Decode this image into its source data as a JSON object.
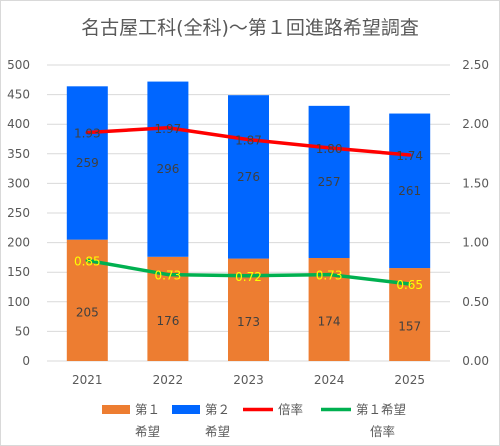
{
  "chart_data": {
    "type": "bar",
    "title": "名古屋工科(全科)～第１回進路希望調査",
    "categories": [
      "2021",
      "2022",
      "2023",
      "2024",
      "2025"
    ],
    "series": [
      {
        "name": "第１希望",
        "kind": "bar",
        "stack": "s",
        "color": "#ed7d31",
        "values": [
          205,
          176,
          173,
          174,
          157
        ],
        "labels": [
          "205",
          "176",
          "173",
          "174",
          "157"
        ]
      },
      {
        "name": "第２希望",
        "kind": "bar",
        "stack": "s",
        "color": "#0066ff",
        "values": [
          259,
          296,
          276,
          257,
          261
        ],
        "labels": [
          "259",
          "296",
          "276",
          "257",
          "261"
        ]
      },
      {
        "name": "倍率",
        "kind": "line",
        "axis": "right",
        "color": "#ff0000",
        "values": [
          1.93,
          1.97,
          1.87,
          1.8,
          1.74
        ],
        "labels": [
          "1.93",
          "1.97",
          "1.87",
          "1.80",
          "1.74"
        ]
      },
      {
        "name": "第１希望倍率",
        "kind": "line",
        "axis": "right",
        "color": "#00b050",
        "values": [
          0.85,
          0.73,
          0.72,
          0.73,
          0.65
        ],
        "labels": [
          "0.85",
          "0.73",
          "0.72",
          "0.73",
          "0.65"
        ]
      }
    ],
    "y_left": {
      "range": [
        0,
        500
      ],
      "ticks": [
        "0",
        "50",
        "100",
        "150",
        "200",
        "250",
        "300",
        "350",
        "400",
        "450",
        "500"
      ]
    },
    "y_right": {
      "range": [
        0,
        2.5
      ],
      "ticks": [
        "0.00",
        "0.50",
        "1.00",
        "1.50",
        "2.00",
        "2.50"
      ]
    },
    "grid": true,
    "legend": {
      "position": "bottom",
      "items": [
        {
          "line1": "第１",
          "line2": "希望",
          "color": "#ed7d31",
          "shape": "rect"
        },
        {
          "line1": "第２",
          "line2": "希望",
          "color": "#0066ff",
          "shape": "rect"
        },
        {
          "line1": "倍率",
          "line2": "",
          "color": "#ff0000",
          "shape": "line"
        },
        {
          "line1": "第１希望",
          "line2": "倍率",
          "color": "#00b050",
          "shape": "line"
        }
      ]
    },
    "label_colors": {
      "bar": "#404040",
      "green_line": "#ffff00",
      "red_line": "#404040"
    }
  }
}
